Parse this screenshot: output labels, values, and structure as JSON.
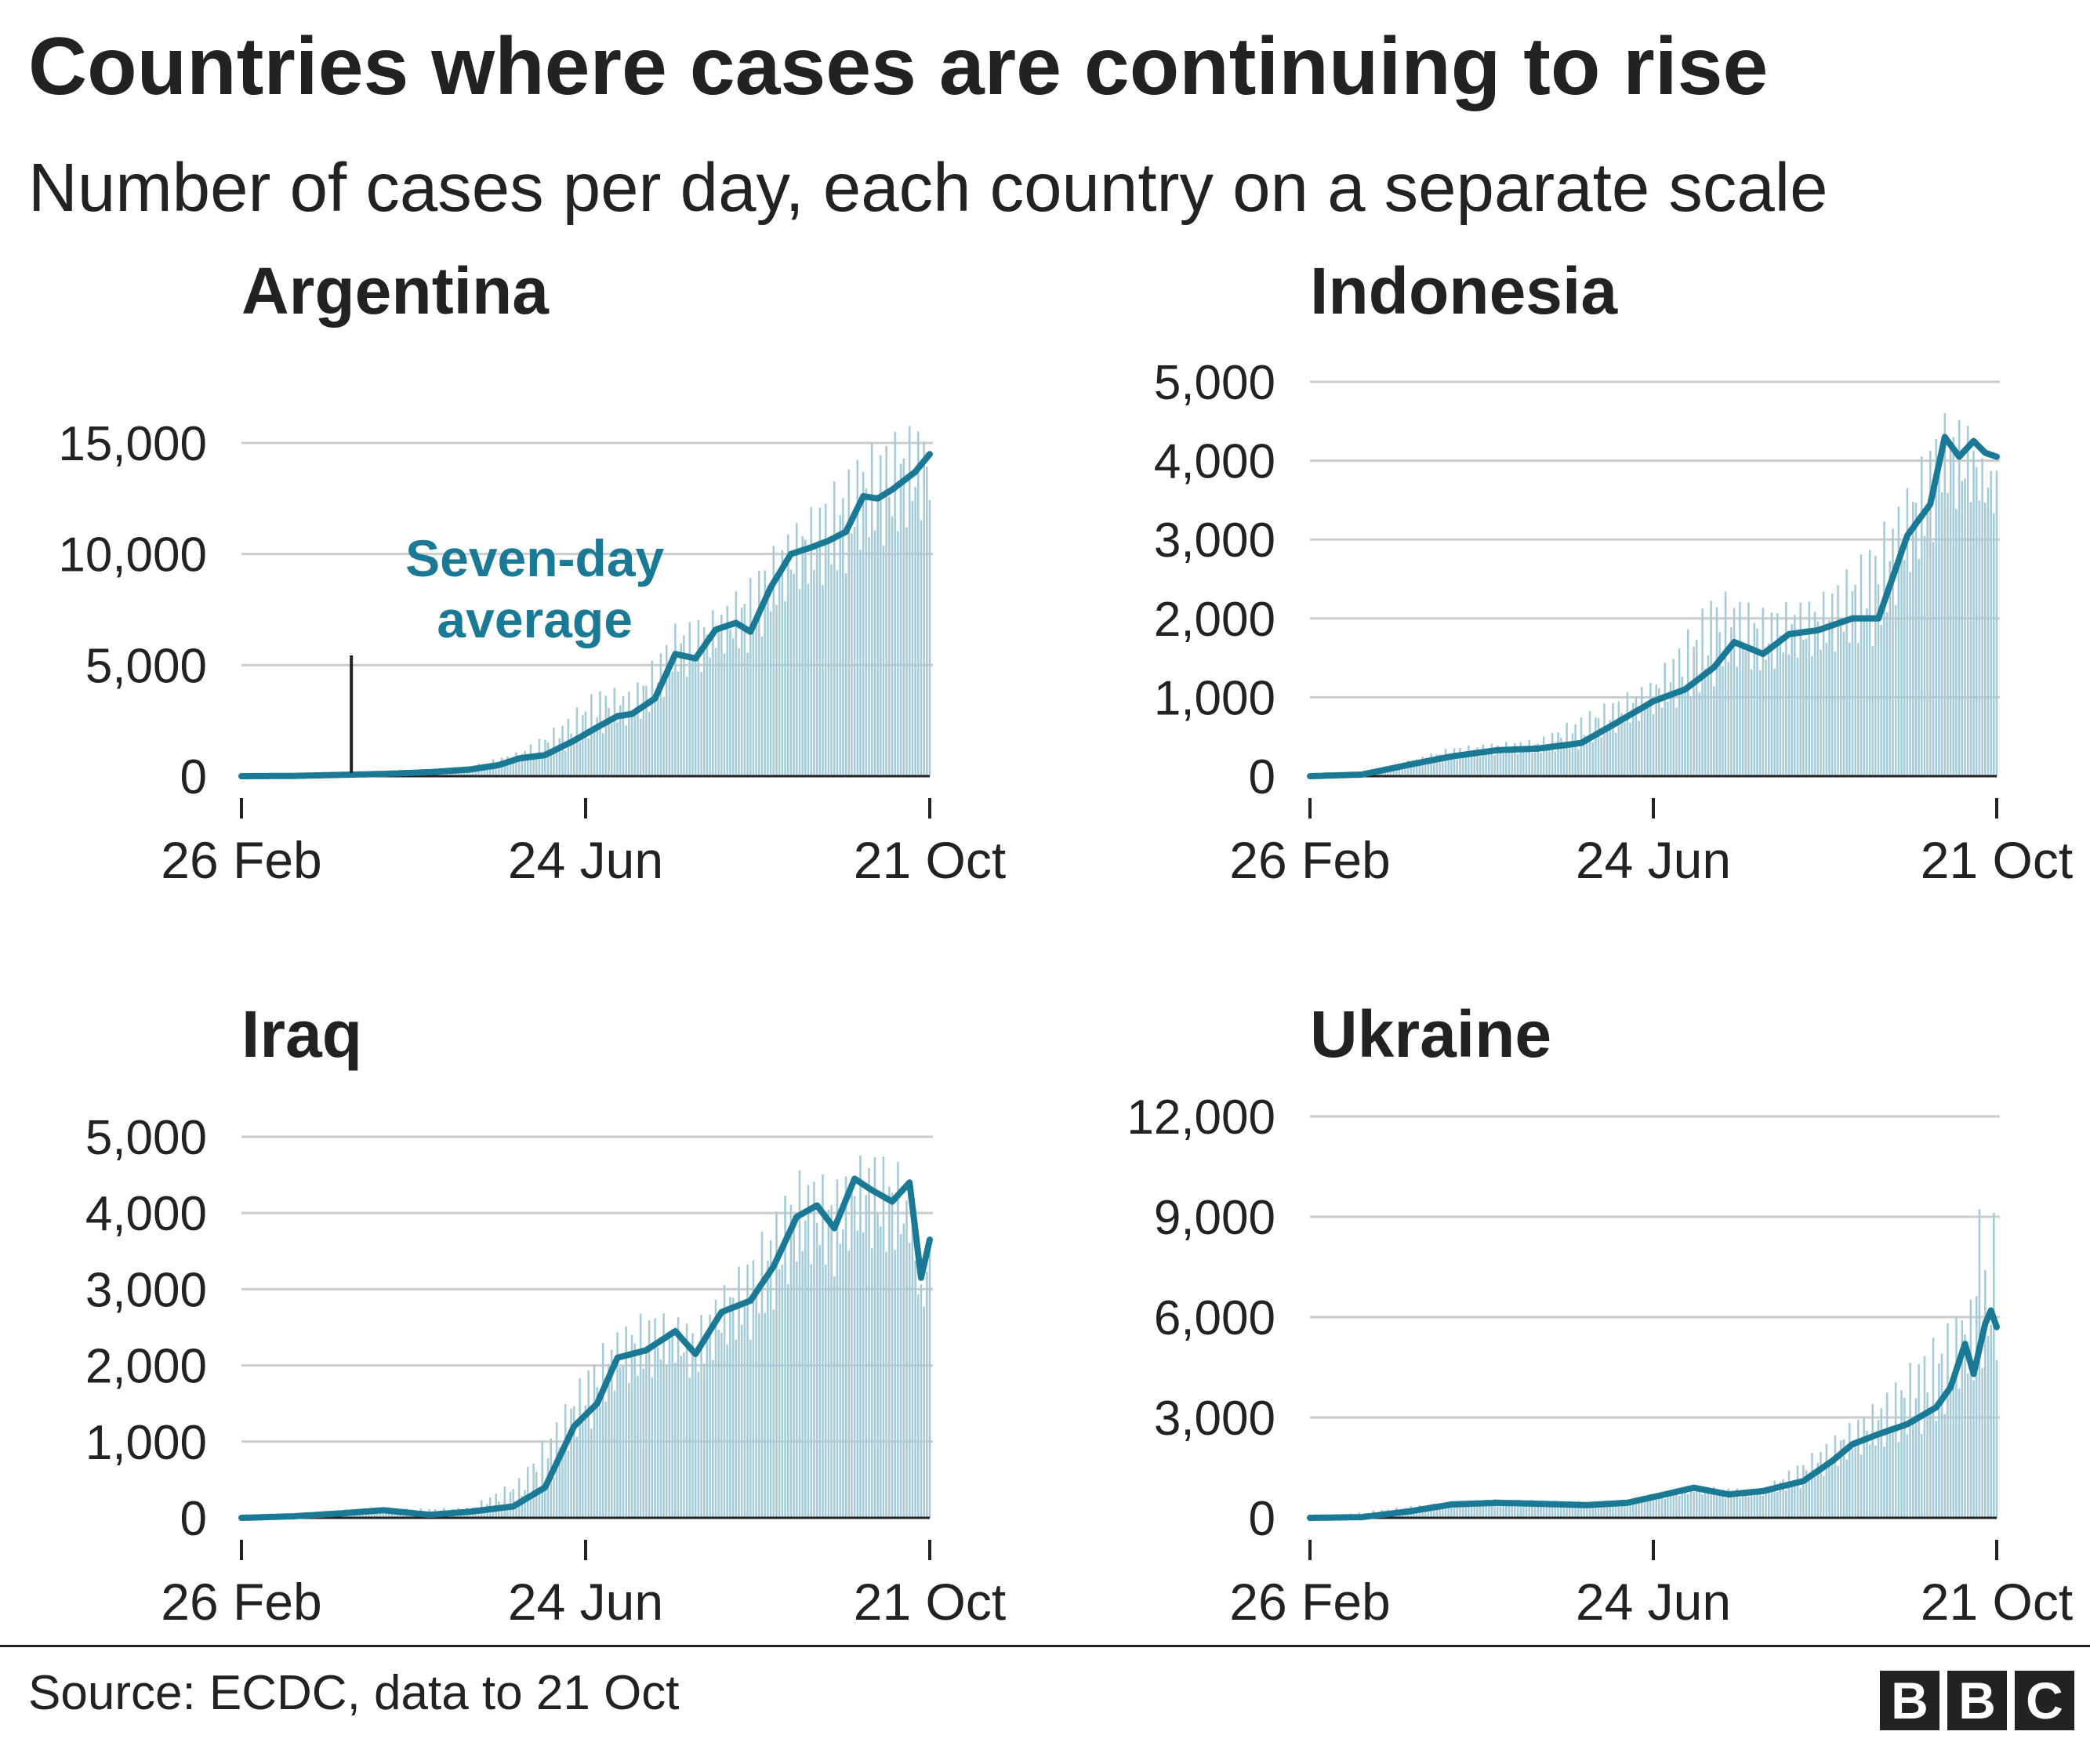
{
  "title": "Countries where cases are continuing to rise",
  "subtitle": "Number of cases per day, each country on a separate scale",
  "source": "Source: ECDC, data to 21 Oct",
  "logo": [
    "B",
    "B",
    "C"
  ],
  "colors": {
    "average_line": "#1a7a96",
    "daily_bars": "#a6cbd8",
    "grid": "#cccccc",
    "text": "#222222"
  },
  "chart_data": [
    {
      "type": "bar+line",
      "title": "Argentina",
      "x_ticks": [
        "26 Feb",
        "24 Jun",
        "21 Oct"
      ],
      "x_range": [
        "2020-02-26",
        "2020-10-21"
      ],
      "ylim": [
        0,
        15000
      ],
      "y_ticks": [
        0,
        5000,
        10000,
        15000
      ],
      "y_tick_labels": [
        "0",
        "5,000",
        "10,000",
        "15,000"
      ],
      "annotation": {
        "text_lines": [
          "Seven-day",
          "average"
        ],
        "date": "2020-04-04"
      },
      "series": [
        {
          "name": "Seven-day average",
          "kind": "line",
          "dates": [
            "2020-02-26",
            "2020-03-15",
            "2020-04-01",
            "2020-04-15",
            "2020-05-01",
            "2020-05-15",
            "2020-05-25",
            "2020-06-01",
            "2020-06-10",
            "2020-06-20",
            "2020-06-28",
            "2020-07-05",
            "2020-07-10",
            "2020-07-18",
            "2020-07-25",
            "2020-08-01",
            "2020-08-08",
            "2020-08-15",
            "2020-08-20",
            "2020-08-27",
            "2020-09-03",
            "2020-09-10",
            "2020-09-16",
            "2020-09-22",
            "2020-09-28",
            "2020-10-03",
            "2020-10-08",
            "2020-10-12",
            "2020-10-16",
            "2020-10-21"
          ],
          "values": [
            0,
            10,
            60,
            100,
            180,
            300,
            500,
            800,
            950,
            1600,
            2200,
            2700,
            2800,
            3500,
            5500,
            5300,
            6600,
            6900,
            6500,
            8500,
            10000,
            10300,
            10600,
            11000,
            12600,
            12500,
            12900,
            13300,
            13700,
            14500
          ]
        },
        {
          "name": "Daily cases",
          "kind": "bars",
          "peaks": [
            [
              "2020-02-26",
              0
            ],
            [
              "2020-03-20",
              30
            ],
            [
              "2020-04-15",
              200
            ],
            [
              "2020-05-15",
              500
            ],
            [
              "2020-06-01",
              1200
            ],
            [
              "2020-06-15",
              2600
            ],
            [
              "2020-06-28",
              4400
            ],
            [
              "2020-07-10",
              4200
            ],
            [
              "2020-07-25",
              7300
            ],
            [
              "2020-08-10",
              8000
            ],
            [
              "2020-08-25",
              10500
            ],
            [
              "2020-09-10",
              12800
            ],
            [
              "2020-09-25",
              15200
            ],
            [
              "2020-10-05",
              16200
            ],
            [
              "2020-10-15",
              16800
            ],
            [
              "2020-10-21",
              16500
            ]
          ]
        }
      ]
    },
    {
      "type": "bar+line",
      "title": "Indonesia",
      "x_ticks": [
        "26 Feb",
        "24 Jun",
        "21 Oct"
      ],
      "x_range": [
        "2020-02-26",
        "2020-10-21"
      ],
      "ylim": [
        0,
        5000
      ],
      "y_ticks": [
        0,
        1000,
        2000,
        3000,
        4000,
        5000
      ],
      "y_tick_labels": [
        "0",
        "1,000",
        "2,000",
        "3,000",
        "4,000",
        "5,000"
      ],
      "series": [
        {
          "name": "Seven-day average",
          "kind": "line",
          "dates": [
            "2020-02-26",
            "2020-03-15",
            "2020-04-01",
            "2020-04-15",
            "2020-05-01",
            "2020-05-15",
            "2020-05-30",
            "2020-06-10",
            "2020-06-24",
            "2020-07-05",
            "2020-07-15",
            "2020-07-22",
            "2020-08-01",
            "2020-08-10",
            "2020-08-20",
            "2020-09-01",
            "2020-09-10",
            "2020-09-20",
            "2020-09-28",
            "2020-10-03",
            "2020-10-08",
            "2020-10-13",
            "2020-10-17",
            "2020-10-21"
          ],
          "values": [
            0,
            20,
            150,
            250,
            330,
            350,
            420,
            650,
            950,
            1100,
            1380,
            1700,
            1550,
            1800,
            1850,
            2000,
            2000,
            3050,
            3450,
            4300,
            4050,
            4250,
            4100,
            4050
          ]
        },
        {
          "name": "Daily cases",
          "kind": "bars",
          "peaks": [
            [
              "2020-02-26",
              0
            ],
            [
              "2020-03-20",
              80
            ],
            [
              "2020-04-15",
              400
            ],
            [
              "2020-05-15",
              500
            ],
            [
              "2020-06-01",
              900
            ],
            [
              "2020-06-24",
              1300
            ],
            [
              "2020-07-15",
              2600
            ],
            [
              "2020-08-01",
              2300
            ],
            [
              "2020-08-20",
              2400
            ],
            [
              "2020-09-01",
              2900
            ],
            [
              "2020-09-20",
              3900
            ],
            [
              "2020-10-01",
              4800
            ],
            [
              "2020-10-10",
              4800
            ],
            [
              "2020-10-21",
              3600
            ]
          ]
        }
      ]
    },
    {
      "type": "bar+line",
      "title": "Iraq",
      "x_ticks": [
        "26 Feb",
        "24 Jun",
        "21 Oct"
      ],
      "x_range": [
        "2020-02-26",
        "2020-10-21"
      ],
      "ylim": [
        0,
        5000
      ],
      "y_ticks": [
        0,
        1000,
        2000,
        3000,
        4000,
        5000
      ],
      "y_tick_labels": [
        "0",
        "1,000",
        "2,000",
        "3,000",
        "4,000",
        "5,000"
      ],
      "series": [
        {
          "name": "Seven-day average",
          "kind": "line",
          "dates": [
            "2020-02-26",
            "2020-03-15",
            "2020-04-01",
            "2020-04-15",
            "2020-05-01",
            "2020-05-15",
            "2020-05-30",
            "2020-06-10",
            "2020-06-20",
            "2020-06-28",
            "2020-07-05",
            "2020-07-15",
            "2020-07-25",
            "2020-08-01",
            "2020-08-10",
            "2020-08-20",
            "2020-08-28",
            "2020-09-05",
            "2020-09-12",
            "2020-09-18",
            "2020-09-25",
            "2020-10-01",
            "2020-10-08",
            "2020-10-14",
            "2020-10-18",
            "2020-10-21"
          ],
          "values": [
            0,
            20,
            60,
            100,
            40,
            80,
            150,
            400,
            1200,
            1500,
            2100,
            2200,
            2450,
            2150,
            2700,
            2850,
            3300,
            3950,
            4100,
            3800,
            4450,
            4300,
            4150,
            4400,
            3150,
            3650
          ]
        },
        {
          "name": "Daily cases",
          "kind": "bars",
          "peaks": [
            [
              "2020-02-26",
              0
            ],
            [
              "2020-04-01",
              120
            ],
            [
              "2020-05-15",
              150
            ],
            [
              "2020-06-01",
              600
            ],
            [
              "2020-06-15",
              1500
            ],
            [
              "2020-06-28",
              2400
            ],
            [
              "2020-07-15",
              2900
            ],
            [
              "2020-08-01",
              2700
            ],
            [
              "2020-08-20",
              3700
            ],
            [
              "2020-09-05",
              4800
            ],
            [
              "2020-09-20",
              4700
            ],
            [
              "2020-10-01",
              5100
            ],
            [
              "2020-10-10",
              4900
            ],
            [
              "2020-10-18",
              3000
            ],
            [
              "2020-10-21",
              3900
            ]
          ]
        }
      ]
    },
    {
      "type": "bar+line",
      "title": "Ukraine",
      "x_ticks": [
        "26 Feb",
        "24 Jun",
        "21 Oct"
      ],
      "x_range": [
        "2020-02-26",
        "2020-10-21"
      ],
      "ylim": [
        0,
        12000
      ],
      "y_ticks": [
        0,
        3000,
        6000,
        9000,
        12000
      ],
      "y_tick_labels": [
        "0",
        "3,000",
        "6,000",
        "9,000",
        "12,000"
      ],
      "series": [
        {
          "name": "Seven-day average",
          "kind": "line",
          "dates": [
            "2020-02-26",
            "2020-03-15",
            "2020-04-01",
            "2020-04-15",
            "2020-05-01",
            "2020-05-15",
            "2020-06-01",
            "2020-06-15",
            "2020-06-28",
            "2020-07-08",
            "2020-07-20",
            "2020-08-01",
            "2020-08-15",
            "2020-08-25",
            "2020-09-01",
            "2020-09-10",
            "2020-09-20",
            "2020-09-30",
            "2020-10-05",
            "2020-10-10",
            "2020-10-13",
            "2020-10-17",
            "2020-10-19",
            "2020-10-21"
          ],
          "values": [
            0,
            20,
            200,
            400,
            450,
            420,
            380,
            450,
            700,
            900,
            700,
            800,
            1100,
            1700,
            2200,
            2500,
            2800,
            3300,
            3900,
            5200,
            4300,
            5800,
            6200,
            5700
          ]
        },
        {
          "name": "Daily cases",
          "kind": "bars",
          "peaks": [
            [
              "2020-02-26",
              0
            ],
            [
              "2020-04-01",
              400
            ],
            [
              "2020-05-01",
              600
            ],
            [
              "2020-06-15",
              500
            ],
            [
              "2020-07-10",
              1000
            ],
            [
              "2020-08-01",
              900
            ],
            [
              "2020-08-25",
              2600
            ],
            [
              "2020-09-10",
              3800
            ],
            [
              "2020-09-25",
              5500
            ],
            [
              "2020-10-05",
              6500
            ],
            [
              "2020-10-12",
              7000
            ],
            [
              "2020-10-15",
              11500
            ],
            [
              "2020-10-18",
              6500
            ],
            [
              "2020-10-20",
              10000
            ],
            [
              "2020-10-21",
              5500
            ]
          ]
        }
      ]
    }
  ]
}
